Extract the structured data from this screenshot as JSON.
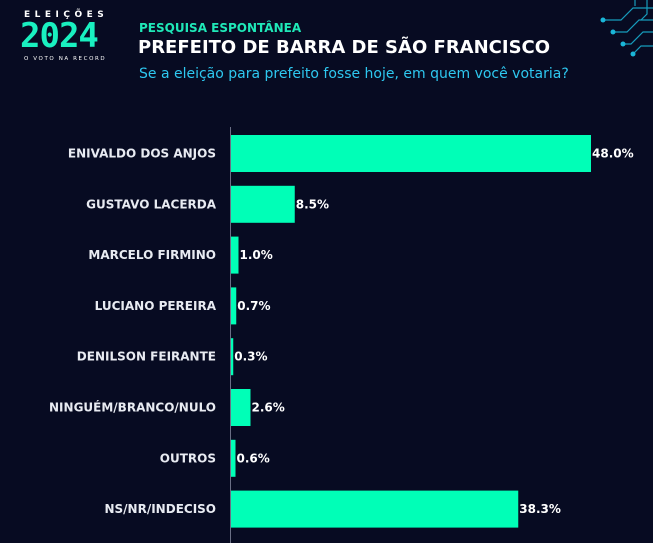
{
  "header": {
    "logo_top": "ELEIÇÕES",
    "logo_year": "2024",
    "logo_bottom": "O VOTO NA RECORD",
    "kicker": "PESQUISA ESPONTÂNEA",
    "title": "PREFEITO DE BARRA DE SÃO FRANCISCO",
    "subtitle": "Se a eleição para prefeito fosse hoje, em quem você votaria?"
  },
  "colors": {
    "background": "#070b22",
    "bar": "#00ffb7",
    "accent": "#1fe8b8",
    "subtitle": "#2ec8f0"
  },
  "chart_data": {
    "type": "bar",
    "orientation": "horizontal",
    "categories": [
      "ENIVALDO DOS ANJOS",
      "GUSTAVO LACERDA",
      "MARCELO FIRMINO",
      "LUCIANO PEREIRA",
      "DENILSON FEIRANTE",
      "NINGUÉM/BRANCO/NULO",
      "OUTROS",
      "NS/NR/INDECISO"
    ],
    "values": [
      48.0,
      8.5,
      1.0,
      0.7,
      0.3,
      2.6,
      0.6,
      38.3
    ],
    "value_labels": [
      "48.0%",
      "8.5%",
      "1.0%",
      "0.7%",
      "0.3%",
      "2.6%",
      "0.6%",
      "38.3%"
    ],
    "xlim": [
      0,
      48.0
    ],
    "grid": false,
    "legend": "none"
  }
}
